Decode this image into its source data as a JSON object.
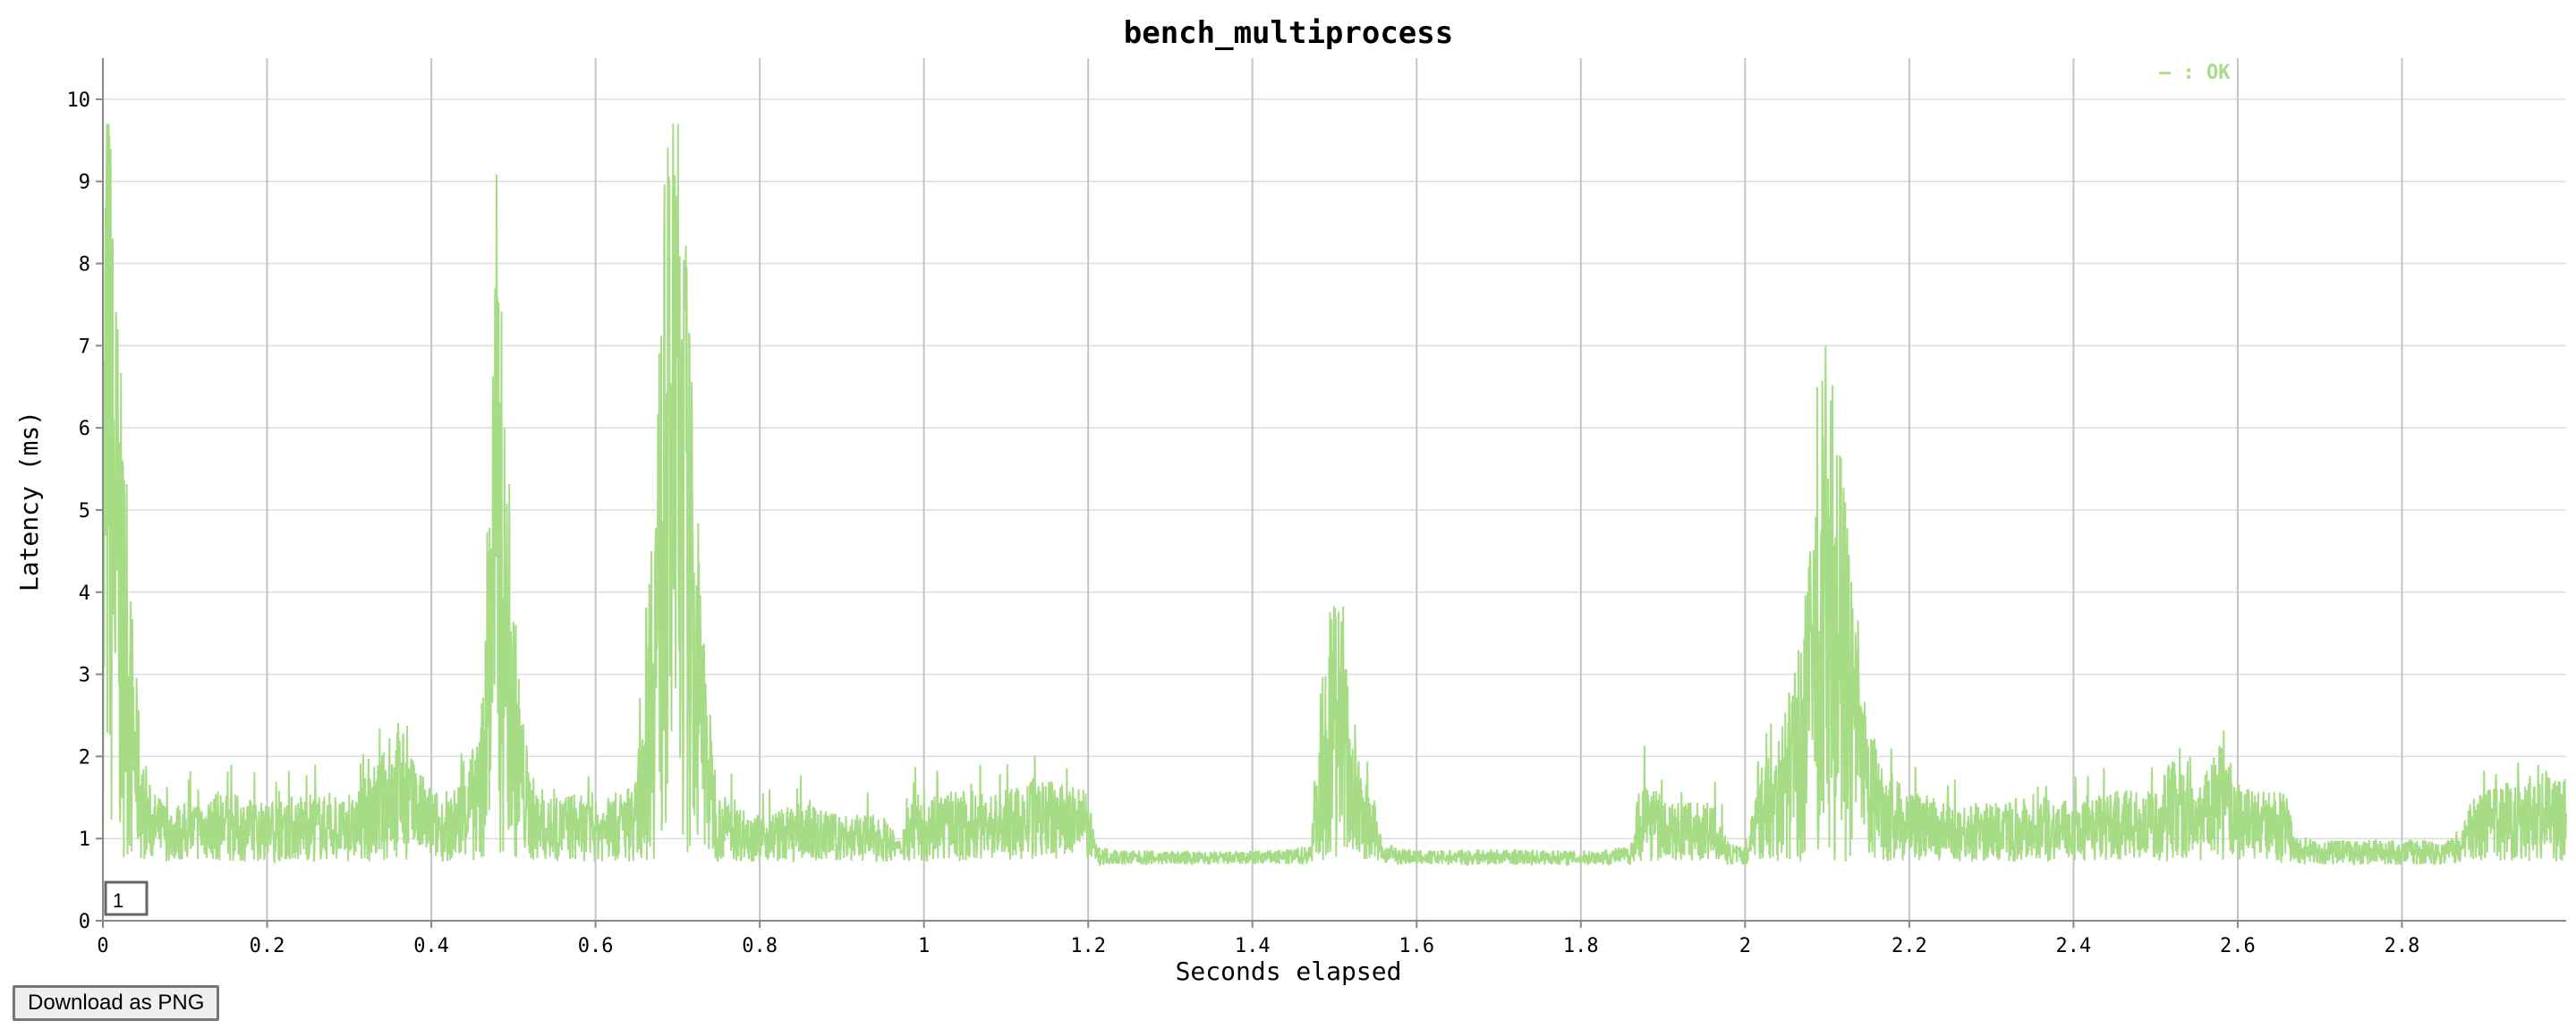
{
  "colors": {
    "series": "#a7dc86",
    "grid": "#dddddd",
    "vgrid": "#c4c4c4",
    "axis": "#888888"
  },
  "download_label": "Download as PNG",
  "chart_data": {
    "type": "line",
    "title": "bench_multiprocess",
    "xlabel": "Seconds elapsed",
    "ylabel": "Latency (ms)",
    "xlim": [
      0,
      3.0
    ],
    "ylim": [
      0,
      10.5
    ],
    "x_ticks": [
      "0",
      "0.2",
      "0.4",
      "0.6",
      "0.8",
      "1",
      "1.2",
      "1.4",
      "1.6",
      "1.8",
      "2",
      "2.2",
      "2.4",
      "2.6",
      "2.8"
    ],
    "x_tick_values": [
      0,
      0.2,
      0.4,
      0.6,
      0.8,
      1.0,
      1.2,
      1.4,
      1.6,
      1.8,
      2.0,
      2.2,
      2.4,
      2.6,
      2.8
    ],
    "y_ticks": [
      "0",
      "1",
      "2",
      "3",
      "4",
      "5",
      "6",
      "7",
      "8",
      "9",
      "10"
    ],
    "y_tick_values": [
      0,
      1,
      2,
      3,
      4,
      5,
      6,
      7,
      8,
      9,
      10
    ],
    "legend": {
      "label": "— : OK",
      "placement": "top-right"
    },
    "marker_label": "1",
    "series": [
      {
        "name": "OK",
        "x": [
          0.0,
          0.005,
          0.01,
          0.02,
          0.03,
          0.04,
          0.05,
          0.06,
          0.08,
          0.1,
          0.14,
          0.2,
          0.25,
          0.3,
          0.34,
          0.36,
          0.38,
          0.42,
          0.46,
          0.47,
          0.48,
          0.49,
          0.5,
          0.51,
          0.52,
          0.53,
          0.54,
          0.57,
          0.6,
          0.63,
          0.65,
          0.66,
          0.67,
          0.68,
          0.69,
          0.7,
          0.71,
          0.72,
          0.73,
          0.74,
          0.75,
          0.77,
          0.8,
          0.85,
          0.9,
          0.95,
          0.97,
          0.98,
          1.0,
          1.05,
          1.1,
          1.15,
          1.2,
          1.21,
          1.25,
          1.3,
          1.35,
          1.4,
          1.45,
          1.47,
          1.48,
          1.49,
          1.5,
          1.51,
          1.52,
          1.53,
          1.55,
          1.56,
          1.6,
          1.7,
          1.8,
          1.86,
          1.87,
          1.88,
          1.9,
          1.93,
          1.96,
          1.98,
          2.0,
          2.01,
          2.02,
          2.05,
          2.07,
          2.08,
          2.09,
          2.1,
          2.11,
          2.12,
          2.13,
          2.14,
          2.15,
          2.17,
          2.2,
          2.25,
          2.3,
          2.35,
          2.4,
          2.45,
          2.5,
          2.52,
          2.55,
          2.58,
          2.6,
          2.63,
          2.66,
          2.67,
          2.7,
          2.75,
          2.8,
          2.85,
          2.87,
          2.88,
          2.9,
          2.93,
          2.96,
          3.0
        ],
        "y": [
          3.8,
          9.5,
          6.6,
          5.0,
          3.5,
          2.3,
          1.5,
          1.3,
          1.2,
          1.2,
          1.3,
          1.2,
          1.3,
          1.2,
          1.6,
          1.9,
          1.5,
          1.2,
          1.8,
          4.0,
          6.5,
          4.3,
          3.0,
          2.0,
          1.5,
          1.3,
          1.2,
          1.3,
          1.2,
          1.3,
          1.4,
          2.6,
          4.0,
          5.5,
          6.8,
          7.2,
          6.0,
          4.0,
          2.8,
          1.9,
          1.3,
          1.2,
          1.1,
          1.2,
          1.1,
          1.1,
          0.9,
          1.2,
          1.3,
          1.3,
          1.3,
          1.4,
          1.3,
          0.78,
          0.75,
          0.75,
          0.74,
          0.75,
          0.76,
          0.8,
          1.9,
          2.6,
          3.1,
          2.7,
          2.0,
          1.5,
          1.2,
          0.8,
          0.75,
          0.76,
          0.75,
          0.78,
          1.3,
          1.5,
          1.2,
          1.2,
          1.2,
          0.8,
          0.78,
          1.2,
          1.5,
          2.0,
          2.6,
          3.5,
          4.6,
          5.0,
          4.5,
          3.8,
          3.0,
          2.3,
          1.8,
          1.5,
          1.3,
          1.2,
          1.2,
          1.3,
          1.2,
          1.3,
          1.3,
          1.6,
          1.3,
          1.7,
          1.4,
          1.3,
          1.3,
          0.85,
          0.82,
          0.82,
          0.83,
          0.82,
          0.9,
          1.2,
          1.3,
          1.4,
          1.5,
          1.4
        ]
      }
    ]
  }
}
